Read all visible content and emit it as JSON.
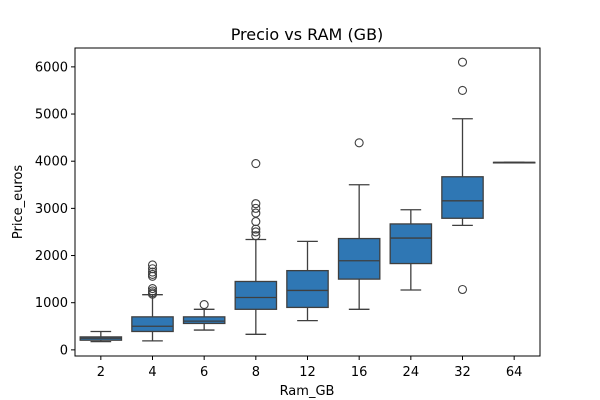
{
  "chart_data": {
    "type": "box",
    "title": "Precio vs RAM (GB)",
    "xlabel": "Ram_GB",
    "ylabel": "Price_euros",
    "ylim": [
      -130,
      6400
    ],
    "yticks": [
      0,
      1000,
      2000,
      3000,
      4000,
      5000,
      6000
    ],
    "grid": false,
    "box_color": "#2f77b4",
    "categories": [
      "2",
      "4",
      "6",
      "8",
      "12",
      "16",
      "24",
      "32",
      "64"
    ],
    "boxes": [
      {
        "category": "2",
        "whisker_low": 174,
        "q1": 205,
        "median": 246,
        "q3": 275,
        "whisker_high": 390,
        "outliers": []
      },
      {
        "category": "4",
        "whisker_low": 190,
        "q1": 390,
        "median": 500,
        "q3": 700,
        "whisker_high": 1170,
        "outliers": [
          1180,
          1210,
          1250,
          1300,
          1560,
          1600,
          1650,
          1720,
          1800
        ]
      },
      {
        "category": "6",
        "whisker_low": 420,
        "q1": 560,
        "median": 610,
        "q3": 700,
        "whisker_high": 860,
        "outliers": [
          960
        ]
      },
      {
        "category": "8",
        "whisker_low": 330,
        "q1": 860,
        "median": 1110,
        "q3": 1450,
        "whisker_high": 2340,
        "outliers": [
          2420,
          2500,
          2560,
          2720,
          2900,
          3000,
          3100,
          3950
        ]
      },
      {
        "category": "12",
        "whisker_low": 620,
        "q1": 900,
        "median": 1260,
        "q3": 1680,
        "whisker_high": 2300,
        "outliers": []
      },
      {
        "category": "16",
        "whisker_low": 860,
        "q1": 1500,
        "median": 1890,
        "q3": 2360,
        "whisker_high": 3500,
        "outliers": [
          4390
        ]
      },
      {
        "category": "24",
        "whisker_low": 1270,
        "q1": 1830,
        "median": 2370,
        "q3": 2670,
        "whisker_high": 2970,
        "outliers": []
      },
      {
        "category": "32",
        "whisker_low": 2640,
        "q1": 2790,
        "median": 3160,
        "q3": 3670,
        "whisker_high": 4900,
        "outliers": [
          1280,
          5500,
          6100
        ]
      },
      {
        "category": "64",
        "whisker_low": 3975,
        "q1": 3975,
        "median": 3975,
        "q3": 3975,
        "whisker_high": 3975,
        "outliers": []
      }
    ]
  }
}
